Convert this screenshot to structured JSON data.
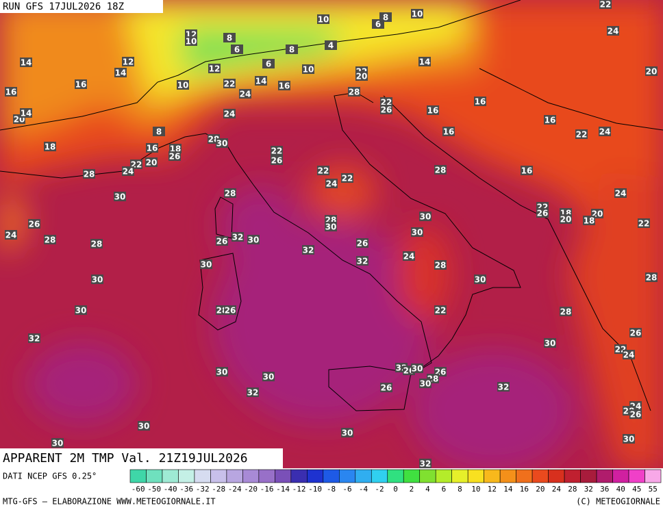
{
  "header": {
    "run": "RUN GFS 17JUL2026 18Z",
    "title": "APPARENT 2M TMP Val. 21Z19JUL2026"
  },
  "map_labels": [
    14,
    16,
    16,
    14,
    12,
    20,
    14,
    18,
    12,
    10,
    8,
    6,
    8,
    4,
    6,
    12,
    10,
    10,
    6,
    8,
    10,
    22,
    24,
    20,
    14,
    22,
    20,
    16,
    14,
    22,
    24,
    10,
    28,
    22,
    26,
    16,
    16,
    16,
    16,
    22,
    24,
    24,
    8,
    16,
    18,
    26,
    28,
    30,
    22,
    26,
    22,
    24,
    20,
    28,
    28,
    16,
    22,
    24,
    22,
    28,
    30,
    24,
    22,
    26,
    18,
    20,
    20,
    18,
    22,
    26,
    24,
    28,
    28,
    26,
    32,
    30,
    28,
    30,
    30,
    30,
    26,
    32,
    24,
    32,
    28,
    30,
    30,
    30,
    28,
    28,
    26,
    30,
    22,
    28,
    32,
    30,
    26,
    22,
    24,
    32,
    26,
    30,
    26,
    28,
    30,
    30,
    30,
    32,
    26,
    32,
    24,
    28,
    26,
    30,
    30,
    30,
    30,
    32
  ],
  "colorbar": {
    "labels": [
      -60,
      -50,
      -40,
      -36,
      -32,
      -28,
      -24,
      -20,
      -16,
      -14,
      -12,
      -10,
      -8,
      -6,
      -4,
      -2,
      0,
      2,
      4,
      6,
      8,
      10,
      12,
      14,
      16,
      20,
      24,
      28,
      32,
      36,
      40,
      45,
      55
    ],
    "colors": [
      "#3fd6a8",
      "#6fe0be",
      "#9eead4",
      "#c4f0e6",
      "#d6dcf0",
      "#c8c0ea",
      "#b8a6e0",
      "#a88ad6",
      "#9870c8",
      "#7a50b8",
      "#3a2eb0",
      "#1e32d0",
      "#1e5ae6",
      "#2a86f0",
      "#30aef0",
      "#30d0f0",
      "#30e080",
      "#40e040",
      "#80e030",
      "#b4ec2a",
      "#e6f02a",
      "#f8e020",
      "#f8b81c",
      "#f4901a",
      "#f0701c",
      "#ea4a1e",
      "#d8301e",
      "#c02030",
      "#a81c3c",
      "#b01c6c",
      "#d020a0",
      "#f040c8",
      "#f8a8e8"
    ]
  },
  "footer": {
    "source": "DATI NCEP GFS 0.25°",
    "credit": "MTG-GFS — ELABORAZIONE WWW.METEOGIORNALE.IT",
    "copyright": "(C) METEOGIORNALE"
  }
}
